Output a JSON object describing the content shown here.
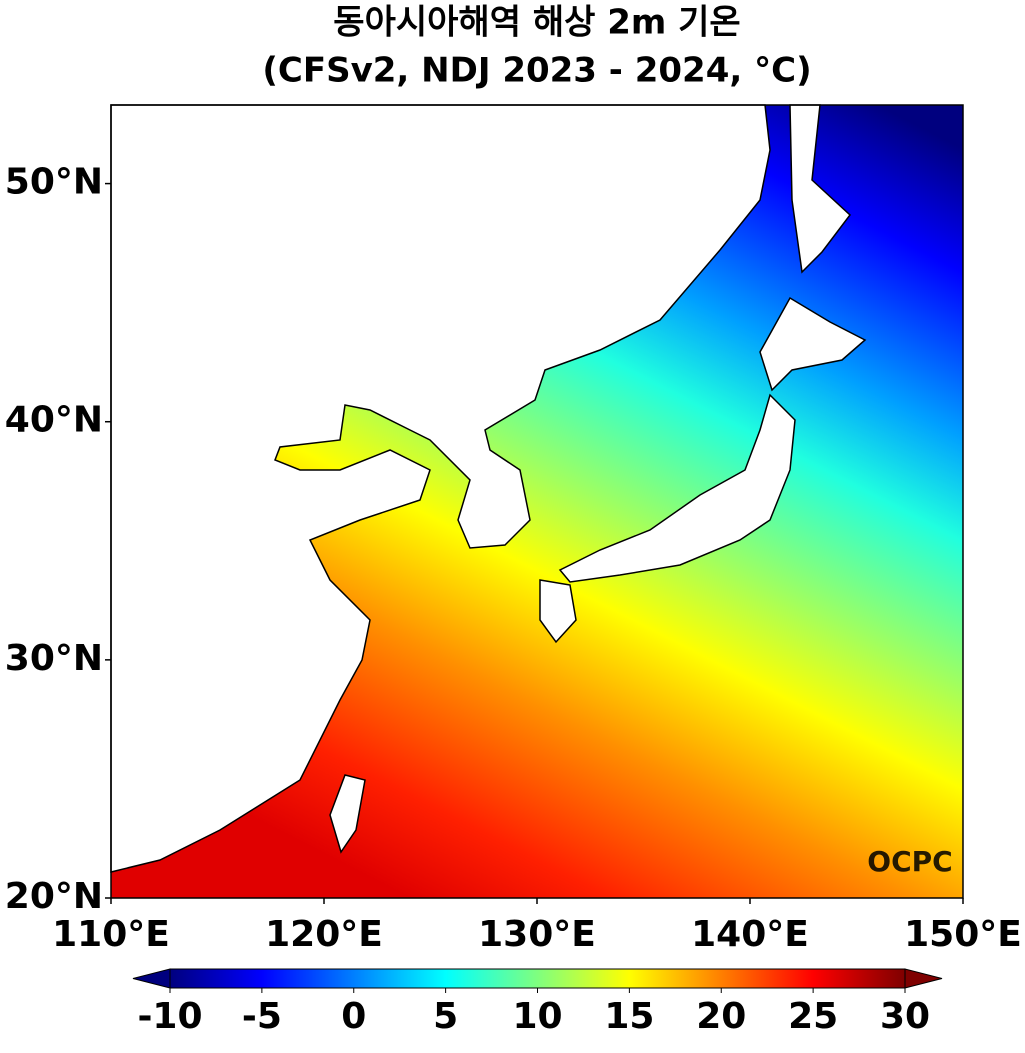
{
  "chart_data": {
    "type": "map",
    "title": "동아시아해역 해상 2m 기온",
    "subtitle": "(CFSv2, NDJ 2023 - 2024, °C)",
    "xlim": [
      110,
      150
    ],
    "ylim": [
      20,
      53.3
    ],
    "xticks": [
      {
        "value": 110,
        "label": "110°E"
      },
      {
        "value": 120,
        "label": "120°E"
      },
      {
        "value": 130,
        "label": "130°E"
      },
      {
        "value": 140,
        "label": "140°E"
      },
      {
        "value": 150,
        "label": "150°E"
      }
    ],
    "yticks": [
      {
        "value": 20,
        "label": "20°N"
      },
      {
        "value": 30,
        "label": "30°N"
      },
      {
        "value": 40,
        "label": "40°N"
      },
      {
        "value": 50,
        "label": "50°N"
      }
    ],
    "colorbar": {
      "lim": [
        -10,
        30
      ],
      "ticks": [
        -10,
        -5,
        0,
        5,
        10,
        15,
        20,
        25,
        30
      ],
      "colors": [
        "#00007f",
        "#0000ff",
        "#007fff",
        "#00ffff",
        "#7fff7f",
        "#ffff00",
        "#ff7f00",
        "#ff0000",
        "#7f0000"
      ]
    },
    "watermark": "OCPC"
  }
}
